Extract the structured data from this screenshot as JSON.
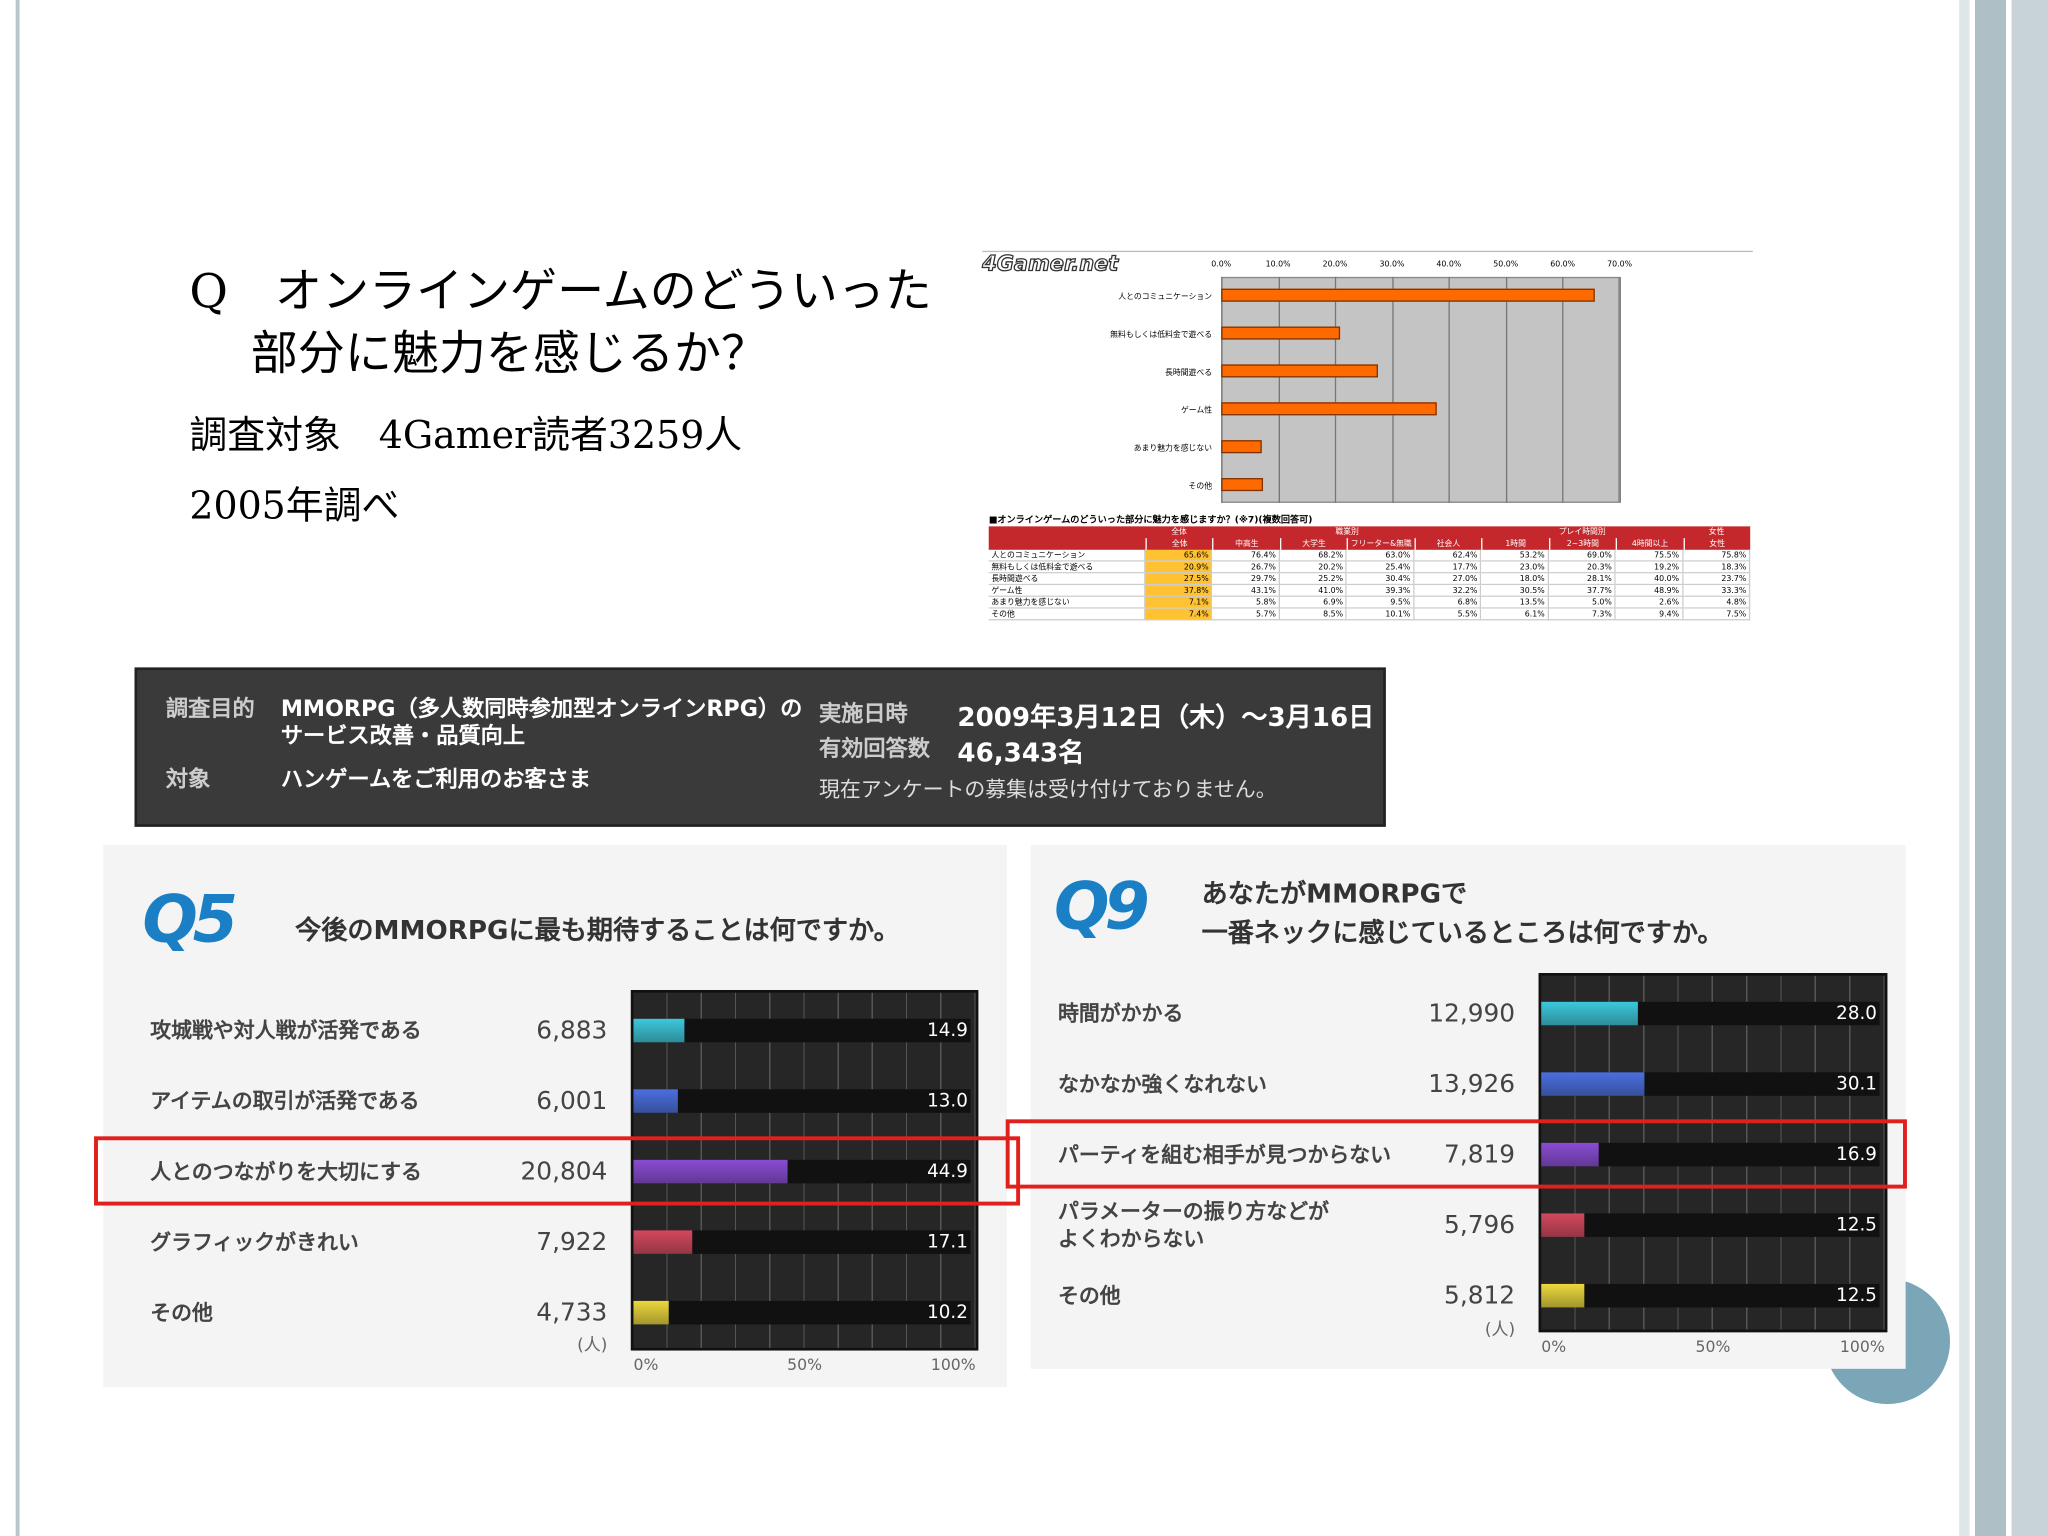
{
  "slide": {
    "title_lines": [
      "Q　オンラインゲームのどういった",
      "部分に魅力を感じるか？"
    ],
    "notes": [
      "調査対象　4Gamer読者3259人",
      "2005年調べ"
    ]
  },
  "chart_data": [
    {
      "type": "bar",
      "orientation": "horizontal",
      "logo": "4Gamer.net",
      "categories": [
        "人とのコミュニケーション",
        "無料もしくは低料金で遊べる",
        "長時間遊べる",
        "ゲーム性",
        "あまり魅力を感じない",
        "その他"
      ],
      "values": [
        65.6,
        20.9,
        27.5,
        37.8,
        7.1,
        7.4
      ],
      "color": "#ff6a00",
      "xlim": [
        0,
        70
      ],
      "xticks": [
        {
          "value": 0,
          "label": "0.0%"
        },
        {
          "value": 10,
          "label": "10.0%"
        },
        {
          "value": 20,
          "label": "20.0%"
        },
        {
          "value": 30,
          "label": "30.0%"
        },
        {
          "value": 40,
          "label": "40.0%"
        },
        {
          "value": 50,
          "label": "50.0%"
        },
        {
          "value": 60,
          "label": "60.0%"
        },
        {
          "value": 70,
          "label": "70.0%"
        }
      ],
      "grid": true
    },
    {
      "type": "bar",
      "orientation": "horizontal",
      "badge": "Q5",
      "title": "今後のMMORPGに最も期待することは何ですか。",
      "categories": [
        "攻城戦や対人戦が活発である",
        "アイテムの取引が活発である",
        "人とのつながりを大切にする",
        "グラフィックがきれい",
        "その他"
      ],
      "count_labels": [
        "6,883",
        "6,001",
        "20,804",
        "7,922",
        "4,733"
      ],
      "count_unit": "(人)",
      "values": [
        14.9,
        13.0,
        44.9,
        17.1,
        10.2
      ],
      "value_labels": [
        "14.9",
        "13.0",
        "44.9",
        "17.1",
        "10.2"
      ],
      "colors": [
        "#3cc8dc",
        "#4a6fe0",
        "#8a4cd4",
        "#d4485e",
        "#ecd83c"
      ],
      "xlim": [
        0,
        100
      ],
      "xticks": [
        {
          "value": 0,
          "label": "0%"
        },
        {
          "value": 50,
          "label": "50%"
        },
        {
          "value": 100,
          "label": "100%"
        }
      ],
      "highlight": 2
    },
    {
      "type": "bar",
      "orientation": "horizontal",
      "badge": "Q9",
      "title": "あなたがMMORPGで\n一番ネックに感じているところは何ですか。",
      "categories": [
        "時間がかかる",
        "なかなか強くなれない",
        "パーティを組む相手が見つからない",
        "パラメーターの振り方などが\nよくわからない",
        "その他"
      ],
      "count_labels": [
        "12,990",
        "13,926",
        "7,819",
        "5,796",
        "5,812"
      ],
      "count_unit": "(人)",
      "values": [
        28.0,
        30.1,
        16.9,
        12.5,
        12.5
      ],
      "value_labels": [
        "28.0",
        "30.1",
        "16.9",
        "12.5",
        "12.5"
      ],
      "colors": [
        "#3cc8dc",
        "#4a6fe0",
        "#8a4cd4",
        "#d4485e",
        "#ecd83c"
      ],
      "xlim": [
        0,
        100
      ],
      "xticks": [
        {
          "value": 0,
          "label": "0%"
        },
        {
          "value": 50,
          "label": "50%"
        },
        {
          "value": 100,
          "label": "100%"
        }
      ],
      "highlight": 2
    }
  ],
  "survey_table": {
    "caption": "■オンラインゲームのどういった部分に魅力を感じますか？(※7)(複数回答可)",
    "group_headers": [
      "全体",
      "職業別",
      "プレイ時間別",
      "女性"
    ],
    "columns": [
      "全体",
      "中高生",
      "大学生",
      "フリーター&無職",
      "社会人",
      "1時間",
      "2~3時間",
      "4時間以上",
      "女性"
    ],
    "rows": [
      [
        "人とのコミュニケーション",
        "65.6%",
        "76.4%",
        "68.2%",
        "63.0%",
        "62.4%",
        "53.2%",
        "69.0%",
        "75.5%",
        "75.8%"
      ],
      [
        "無料もしくは低料金で遊べる",
        "20.9%",
        "26.7%",
        "20.2%",
        "25.4%",
        "17.7%",
        "23.0%",
        "20.3%",
        "19.2%",
        "18.3%"
      ],
      [
        "長時間遊べる",
        "27.5%",
        "29.7%",
        "25.2%",
        "30.4%",
        "27.0%",
        "18.0%",
        "28.1%",
        "40.0%",
        "23.7%"
      ],
      [
        "ゲーム性",
        "37.8%",
        "43.1%",
        "41.0%",
        "39.3%",
        "32.2%",
        "30.5%",
        "37.7%",
        "48.9%",
        "33.3%"
      ],
      [
        "あまり魅力を感じない",
        "7.1%",
        "5.8%",
        "6.9%",
        "9.5%",
        "6.8%",
        "13.5%",
        "5.0%",
        "2.6%",
        "4.8%"
      ],
      [
        "その他",
        "7.4%",
        "5.7%",
        "8.5%",
        "10.1%",
        "5.5%",
        "6.1%",
        "7.3%",
        "9.4%",
        "7.5%"
      ]
    ]
  },
  "info_box": {
    "purpose_label": "調査目的",
    "purpose": "MMORPG（多人数同時参加型オンラインRPG）の\nサービス改善・品質向上",
    "target_label": "対象",
    "target": "ハンゲームをご利用のお客さま",
    "date_label": "実施日時",
    "date": "2009年3月12日（木）～3月16日（月）",
    "responses_label": "有効回答数",
    "responses": "46,343名",
    "notice": "現在アンケートの募集は受け付けておりません。"
  }
}
